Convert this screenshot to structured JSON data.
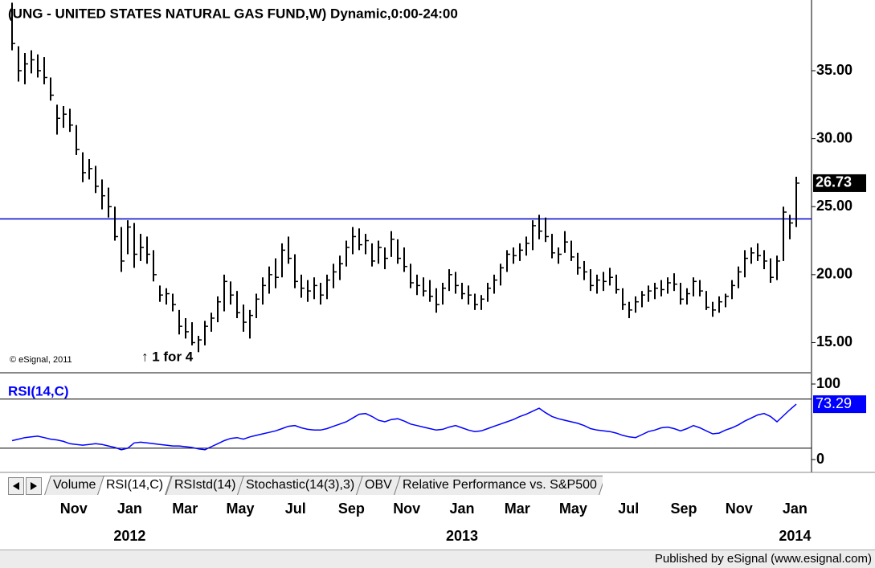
{
  "chart_data": [
    {
      "type": "ohlc",
      "title": "(UNG - UNITED STATES NATURAL GAS FUND,W) Dynamic,0:00-24:00",
      "annotations": [
        "© eSignal, 2011",
        "↑ 1 for 4"
      ],
      "color": "#000000",
      "hline": 24.1,
      "hline_color": "#0000cc",
      "xlim": [
        0,
        122
      ],
      "xticks": [
        {
          "value": 9.6,
          "label": "Nov"
        },
        {
          "value": 18.3,
          "label": "Jan"
        },
        {
          "value": 26.9,
          "label": "Mar"
        },
        {
          "value": 35.5,
          "label": "May"
        },
        {
          "value": 44.1,
          "label": "Jul"
        },
        {
          "value": 52.8,
          "label": "Sep"
        },
        {
          "value": 61.4,
          "label": "Nov"
        },
        {
          "value": 70,
          "label": "Jan"
        },
        {
          "value": 78.6,
          "label": "Mar"
        },
        {
          "value": 87.3,
          "label": "May"
        },
        {
          "value": 95.9,
          "label": "Jul"
        },
        {
          "value": 104.5,
          "label": "Sep"
        },
        {
          "value": 113.1,
          "label": "Nov"
        },
        {
          "value": 121.8,
          "label": "Jan"
        }
      ],
      "year_ticks": [
        {
          "value": 18.3,
          "label": "2012"
        },
        {
          "value": 70,
          "label": "2013"
        },
        {
          "value": 121.8,
          "label": "2014"
        }
      ],
      "ylim": [
        12.9,
        40.2
      ],
      "yticks": [
        {
          "value": 15,
          "label": "15.00"
        },
        {
          "value": 20,
          "label": "20.00"
        },
        {
          "value": 25,
          "label": "25.00"
        },
        {
          "value": 30,
          "label": "30.00"
        },
        {
          "value": 35,
          "label": "35.00"
        }
      ],
      "high": [
        40,
        36.8,
        36.3,
        36.5,
        36.2,
        36,
        34.5,
        32.5,
        32.4,
        32.2,
        31,
        29,
        28.5,
        28,
        27,
        26.4,
        25,
        23.5,
        24,
        23.8,
        23,
        22.8,
        21.8,
        19.2,
        19,
        18.6,
        17.4,
        16.8,
        16.5,
        15.5,
        16.6,
        17.2,
        18.4,
        20,
        19.5,
        18.8,
        17.8,
        17.4,
        18.6,
        19.8,
        20.6,
        21.2,
        22.3,
        22.8,
        21.5,
        20,
        19.6,
        19.8,
        19.4,
        20,
        20.8,
        21.4,
        22.5,
        23.5,
        23.4,
        23,
        22.3,
        22.5,
        22,
        23.2,
        22.6,
        22,
        20.8,
        20,
        19.8,
        19.6,
        19,
        19.4,
        20.4,
        20.2,
        19.4,
        19.2,
        18.6,
        18.5,
        19.4,
        20,
        20.8,
        21.8,
        22,
        22.3,
        22.8,
        24,
        24.4,
        24.2,
        23,
        22,
        23.2,
        22.5,
        21.6,
        21,
        20.4,
        20,
        20.2,
        20.5,
        20,
        19,
        18,
        18.4,
        18.8,
        19.2,
        19.4,
        19.6,
        19.8,
        20.1,
        19.4,
        19,
        19.8,
        19.6,
        18.8,
        18,
        18.4,
        18.6,
        19.6,
        20.6,
        21.8,
        22,
        22.3,
        21.8,
        21.2,
        21.4,
        25,
        24.4,
        27.2
      ],
      "low": [
        36.5,
        34.2,
        34,
        34.8,
        34.5,
        34,
        32.8,
        30.3,
        30.8,
        30.5,
        28.8,
        26.8,
        27,
        26,
        24.8,
        24.2,
        22.5,
        20.2,
        21.5,
        20.5,
        21,
        20.8,
        19.5,
        18,
        17.8,
        17.3,
        15.6,
        15.3,
        14.8,
        14.3,
        14.8,
        15.8,
        16.5,
        17.3,
        17.8,
        16.8,
        15.8,
        15.3,
        16.8,
        17.8,
        18.6,
        19,
        19.8,
        20.8,
        19,
        18.3,
        18,
        18.2,
        17.8,
        18.2,
        19,
        19.6,
        20.6,
        21.5,
        21.8,
        21.5,
        20.6,
        20.8,
        20.4,
        21.3,
        20.8,
        20.2,
        19,
        18.5,
        18.4,
        18,
        17.2,
        17.8,
        18.8,
        18.6,
        18.2,
        17.8,
        17.4,
        17.4,
        18,
        18.6,
        19.2,
        20.2,
        20.8,
        21,
        21.4,
        21.8,
        22.6,
        22.4,
        21.2,
        20.8,
        21.6,
        21,
        20,
        19.6,
        18.8,
        18.6,
        18.8,
        19.2,
        18.6,
        17.4,
        16.8,
        17.2,
        17.6,
        18,
        18.2,
        18.4,
        18.6,
        18.8,
        17.8,
        17.8,
        18.4,
        18.4,
        17.4,
        16.9,
        17.2,
        17.6,
        18.2,
        19,
        19.8,
        20.8,
        21,
        20.4,
        19.4,
        19.6,
        21,
        22.6,
        23.5
      ],
      "close": [
        37,
        35,
        35.5,
        35.8,
        35,
        34.5,
        33.2,
        31.5,
        31.8,
        31,
        29.2,
        27.5,
        27.8,
        26.5,
        25.8,
        25,
        22.8,
        21,
        23.5,
        21.5,
        22,
        21.5,
        20,
        18.5,
        18.6,
        17.8,
        16.2,
        15.8,
        15,
        15.2,
        16.2,
        16.8,
        18,
        19.5,
        18.5,
        17.2,
        16.5,
        17,
        18.2,
        19.2,
        20,
        19.8,
        21.8,
        21.2,
        19.5,
        19,
        18.8,
        19.2,
        18.5,
        19.6,
        20.2,
        20.8,
        22,
        22.8,
        22.2,
        22.5,
        21,
        22,
        21.2,
        22.6,
        21.2,
        20.6,
        19.4,
        19.2,
        18.8,
        18.4,
        17.8,
        19,
        20,
        19.2,
        18.6,
        18.5,
        17.8,
        18.2,
        19,
        19.6,
        20.5,
        21.5,
        21.4,
        21.8,
        22.3,
        23.6,
        23.2,
        22.8,
        21.6,
        21.5,
        22.4,
        21.3,
        20.5,
        20.2,
        19.2,
        19.6,
        19.5,
        19.8,
        18.9,
        17.8,
        17.4,
        18,
        18.5,
        18.8,
        19,
        18.9,
        19.4,
        19.3,
        18.2,
        18.6,
        19.5,
        18.8,
        17.6,
        17.4,
        18,
        18.4,
        19.2,
        20.2,
        21.2,
        21.6,
        21.4,
        21,
        19.8,
        21,
        24.6,
        23.8,
        26.73
      ]
    },
    {
      "type": "line",
      "title": "RSI(14,C)",
      "color": "#0000ff",
      "xlim": [
        0,
        122
      ],
      "ylim": [
        0,
        100
      ],
      "yticks": [
        0,
        100
      ],
      "levels": [
        80,
        15
      ],
      "values": [
        25,
        27,
        29,
        30,
        31,
        29,
        27,
        26,
        24,
        21,
        20,
        19,
        20,
        21,
        20,
        18,
        16,
        13,
        15,
        22,
        23,
        22,
        21,
        20,
        19,
        18,
        18,
        17,
        16,
        14,
        13,
        17,
        21,
        25,
        28,
        29,
        27,
        30,
        32,
        34,
        36,
        38,
        41,
        44,
        45,
        42,
        40,
        39,
        39,
        41,
        44,
        47,
        50,
        55,
        60,
        61,
        57,
        52,
        50,
        53,
        54,
        51,
        47,
        45,
        43,
        41,
        39,
        40,
        43,
        45,
        42,
        39,
        37,
        38,
        41,
        44,
        47,
        50,
        53,
        57,
        60,
        64,
        68,
        62,
        57,
        54,
        52,
        50,
        48,
        45,
        41,
        39,
        38,
        37,
        35,
        32,
        30,
        29,
        33,
        37,
        39,
        42,
        43,
        41,
        38,
        41,
        45,
        42,
        38,
        34,
        35,
        39,
        42,
        46,
        51,
        55,
        59,
        61,
        57,
        50,
        58,
        66,
        73.29
      ]
    }
  ],
  "tabs": [
    "Volume",
    "RSI(14,C)",
    "RSIstd(14)",
    "Stochastic(14(3),3)",
    "OBV",
    "Relative Performance vs. S&P500"
  ],
  "active_tab": 1,
  "footer": "Published by eSignal (www.esignal.com)"
}
